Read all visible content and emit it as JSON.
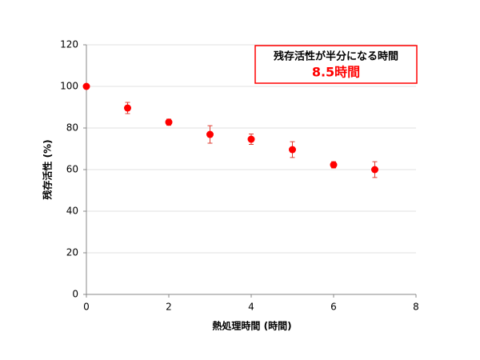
{
  "chart_data": {
    "type": "scatter",
    "x_label": "熱処理時間 (時間)",
    "y_label": "残存活性 (%)",
    "annotation": {
      "title": "残存活性が半分になる時間",
      "value_text": "8.5時間"
    },
    "series": [
      {
        "color": "#ff0000",
        "error_color": "#e03c31",
        "x": [
          0,
          1,
          2,
          3,
          4,
          5,
          6,
          7
        ],
        "values": [
          100,
          89.6,
          82.8,
          76.9,
          74.6,
          69.6,
          62.3,
          60
        ],
        "errors": [
          0.5,
          2.7,
          1.5,
          4.2,
          2.5,
          3.8,
          1.5,
          3.8
        ]
      }
    ],
    "xlim": [
      0,
      8
    ],
    "xticks": [
      0,
      2,
      4,
      6,
      8
    ],
    "ylim": [
      0,
      120
    ],
    "yticks": [
      0,
      20,
      40,
      60,
      80,
      100,
      120
    ],
    "grid": true
  }
}
